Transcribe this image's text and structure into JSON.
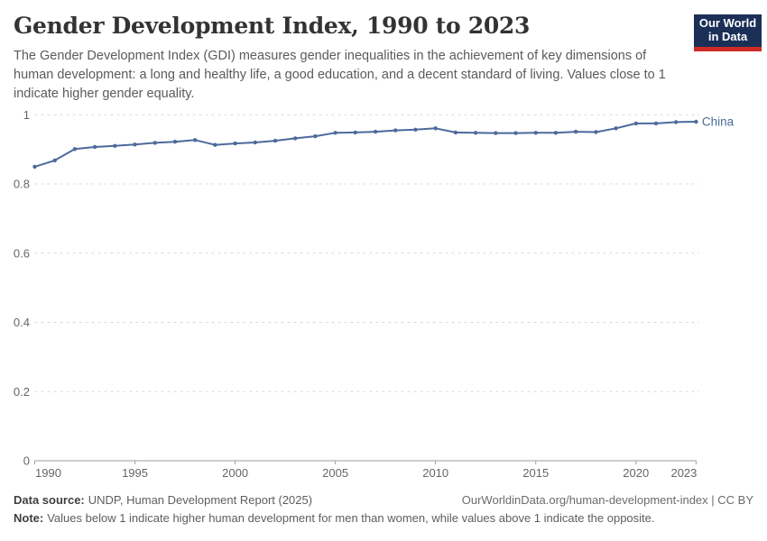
{
  "header": {
    "title": "Gender Development Index, 1990 to 2023",
    "subtitle": "The Gender Development Index (GDI) measures gender inequalities in the achievement of key dimensions of human development: a long and healthy life, a good education, and a decent standard of living. Values close to 1 indicate higher gender equality."
  },
  "logo": {
    "line1": "Our World",
    "line2": "in Data",
    "bg_color": "#1b2f57",
    "accent_color": "#cf2b28"
  },
  "chart_data": {
    "type": "line",
    "title": "Gender Development Index, 1990 to 2023",
    "xlabel": "",
    "ylabel": "",
    "x": [
      1990,
      1991,
      1992,
      1993,
      1994,
      1995,
      1996,
      1997,
      1998,
      1999,
      2000,
      2001,
      2002,
      2003,
      2004,
      2005,
      2006,
      2007,
      2008,
      2009,
      2010,
      2011,
      2012,
      2013,
      2014,
      2015,
      2016,
      2017,
      2018,
      2019,
      2020,
      2021,
      2022,
      2023
    ],
    "series": [
      {
        "name": "China",
        "color": "#4c6a9c",
        "values": [
          0.85,
          0.868,
          0.901,
          0.907,
          0.91,
          0.914,
          0.919,
          0.922,
          0.927,
          0.913,
          0.917,
          0.92,
          0.925,
          0.932,
          0.938,
          0.948,
          0.949,
          0.951,
          0.955,
          0.957,
          0.961,
          0.949,
          0.948,
          0.947,
          0.947,
          0.948,
          0.948,
          0.951,
          0.95,
          0.961,
          0.975,
          0.975,
          0.979,
          0.98
        ]
      }
    ],
    "ylim": [
      0,
      1
    ],
    "yticks": [
      0,
      0.2,
      0.4,
      0.6,
      0.8,
      1
    ],
    "ytick_labels": [
      "0",
      "0.2",
      "0.4",
      "0.6",
      "0.8",
      "1"
    ],
    "xticks": [
      1990,
      1995,
      2000,
      2005,
      2010,
      2015,
      2020,
      2023
    ],
    "grid": "horizontal-dashed",
    "gridline_color": "#d9d9d9",
    "axis_color": "#9e9e9e",
    "tick_label_color": "#666666",
    "legend_position": "end-of-line-label"
  },
  "footer": {
    "datasource_label": "Data source:",
    "datasource_text": "UNDP, Human Development Report (2025)",
    "link": "OurWorldinData.org/human-development-index | CC BY",
    "note_label": "Note:",
    "note_text": "Values below 1 indicate higher human development for men than women, while values above 1 indicate the opposite."
  }
}
